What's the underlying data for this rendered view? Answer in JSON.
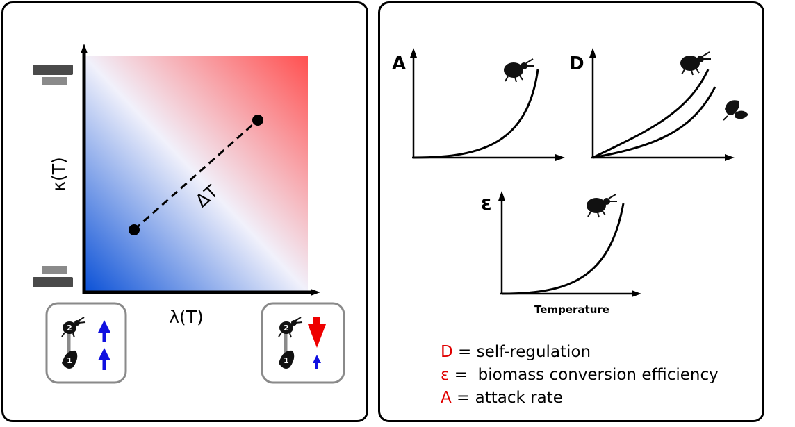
{
  "left": {
    "x_axis_label": "λ(T)",
    "y_axis_label": "κ(T)",
    "delta_label": "ΔT",
    "gradient_colors": {
      "low": "#0a50d6",
      "mid": "#f1f1fb",
      "high": "#ff5050"
    },
    "inset_left": {
      "top_badge": "2",
      "bottom_badge": "1",
      "arrows": [
        "up",
        "up"
      ],
      "arrow_color": "#1010e0"
    },
    "inset_right": {
      "top_badge": "2",
      "bottom_badge": "1",
      "arrows": [
        "down",
        "up-small"
      ],
      "down_color": "#ee0000",
      "up_color": "#1010e0"
    }
  },
  "right": {
    "plots": [
      {
        "label": "A"
      },
      {
        "label": "D"
      },
      {
        "label": "ε"
      }
    ],
    "xlabel": "Temperature"
  },
  "legend": [
    {
      "symbol": "D",
      "text": " = self-regulation"
    },
    {
      "symbol": "ε",
      "text": " =  biomass conversion efficiency"
    },
    {
      "symbol": "A",
      "text": " = attack rate"
    }
  ],
  "accent_color": "#e00000"
}
